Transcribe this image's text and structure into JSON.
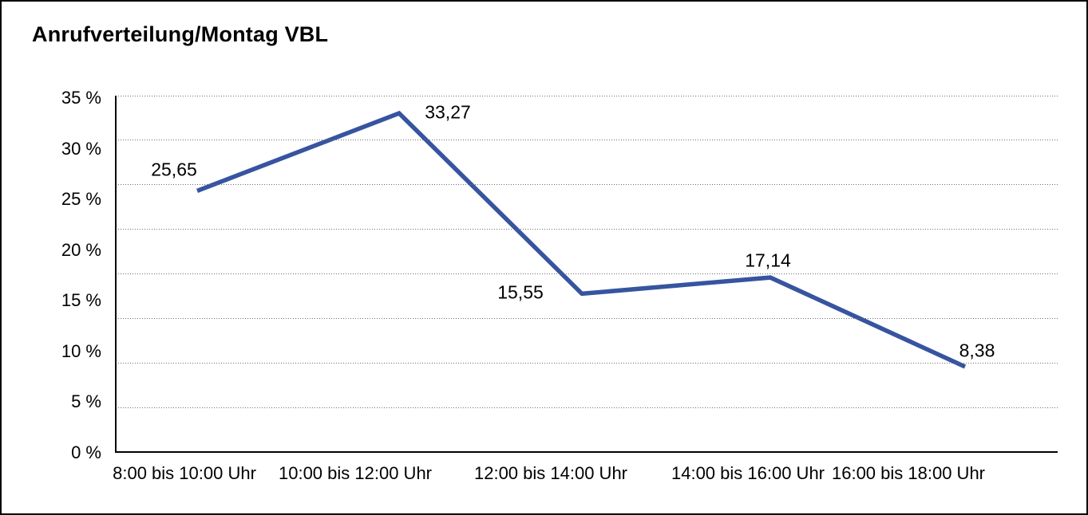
{
  "title": "Anrufverteilung/Montag VBL",
  "chart_data": {
    "type": "line",
    "title": "Anrufverteilung/Montag VBL",
    "categories": [
      "8:00 bis 10:00 Uhr",
      "10:00 bis 12:00 Uhr",
      "12:00 bis 14:00 Uhr",
      "14:00 bis 16:00 Uhr",
      "16:00 bis 18:00 Uhr"
    ],
    "values": [
      25.65,
      33.27,
      15.55,
      17.14,
      8.38
    ],
    "point_labels": [
      "25,65",
      "33,27",
      "15,55",
      "17,14",
      "8,38"
    ],
    "y_ticks": [
      "35 %",
      "30 %",
      "25 %",
      "20 %",
      "15 %",
      "10 %",
      "5 %",
      "0 %"
    ],
    "ylabel": "",
    "xlabel": "",
    "ylim": [
      0,
      35
    ],
    "grid": "dotted-horizontal",
    "legend_position": "none",
    "line_color": "#3754a0",
    "text_color": "#000000",
    "background_color": "#ffffff"
  }
}
